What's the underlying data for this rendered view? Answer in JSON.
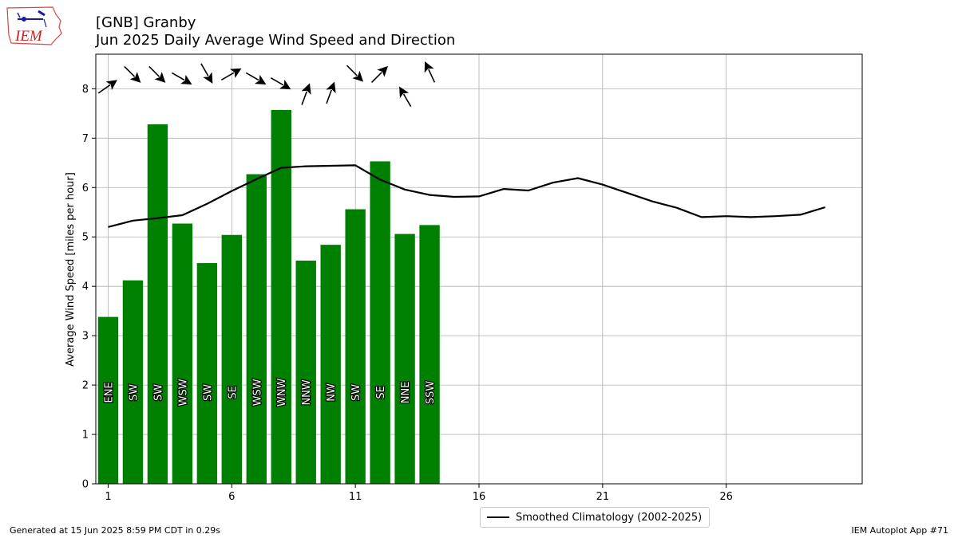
{
  "header": {
    "title_line1": "[GNB] Granby",
    "title_line2": "Jun 2025 Daily Average Wind Speed and Direction"
  },
  "logo": {
    "text": "IEM",
    "icon": "iem-iowa-logo"
  },
  "footer": {
    "generated": "Generated at 15 Jun 2025 8:59 PM CDT in 0.29s",
    "app": "IEM Autoplot App #71"
  },
  "legend": {
    "climatology_label": "Smoothed Climatology (2002-2025)"
  },
  "colors": {
    "bar": "#008000",
    "climatology": "#000000",
    "grid": "#b0b0b0"
  },
  "chart_data": {
    "type": "bar",
    "ylabel": "Average Wind Speed [miles per hour]",
    "xlim": [
      0.5,
      31.5
    ],
    "ylim": [
      0,
      8.7
    ],
    "xticks": [
      1,
      6,
      11,
      16,
      21,
      26
    ],
    "yticks": [
      0,
      1,
      2,
      3,
      4,
      5,
      6,
      7,
      8
    ],
    "grid": true,
    "legend_position": "bottom-center",
    "days": [
      1,
      2,
      3,
      4,
      5,
      6,
      7,
      8,
      9,
      10,
      11,
      12,
      13,
      14
    ],
    "speed": [
      3.38,
      4.12,
      7.28,
      5.27,
      4.47,
      5.04,
      6.27,
      7.57,
      4.52,
      4.84,
      5.56,
      6.53,
      5.06,
      5.24
    ],
    "direction": [
      "ENE",
      "SW",
      "SW",
      "WSW",
      "SW",
      "SE",
      "WSW",
      "WNW",
      "NNW",
      "NW",
      "SW",
      "SE",
      "NNE",
      "SSW"
    ],
    "arrow_angle_deg": [
      -35,
      45,
      45,
      30,
      60,
      -30,
      30,
      30,
      -70,
      -70,
      45,
      -45,
      -120,
      -115
    ],
    "arrow_y": [
      8.05,
      8.28,
      8.28,
      8.2,
      8.3,
      8.3,
      8.2,
      8.1,
      7.9,
      7.93,
      8.3,
      8.3,
      7.85,
      8.35
    ],
    "climatology": {
      "name": "Smoothed Climatology (2002-2025)",
      "x": [
        1,
        2,
        3,
        4,
        5,
        6,
        7,
        8,
        9,
        10,
        11,
        12,
        13,
        14,
        15,
        16,
        17,
        18,
        19,
        20,
        21,
        22,
        23,
        24,
        25,
        26,
        27,
        28,
        29,
        30
      ],
      "y": [
        5.2,
        5.33,
        5.38,
        5.44,
        5.67,
        5.93,
        6.17,
        6.4,
        6.43,
        6.44,
        6.45,
        6.16,
        5.96,
        5.85,
        5.81,
        5.82,
        5.97,
        5.94,
        6.1,
        6.19,
        6.06,
        5.89,
        5.72,
        5.59,
        5.4,
        5.42,
        5.4,
        5.42,
        5.45,
        5.6
      ]
    }
  }
}
